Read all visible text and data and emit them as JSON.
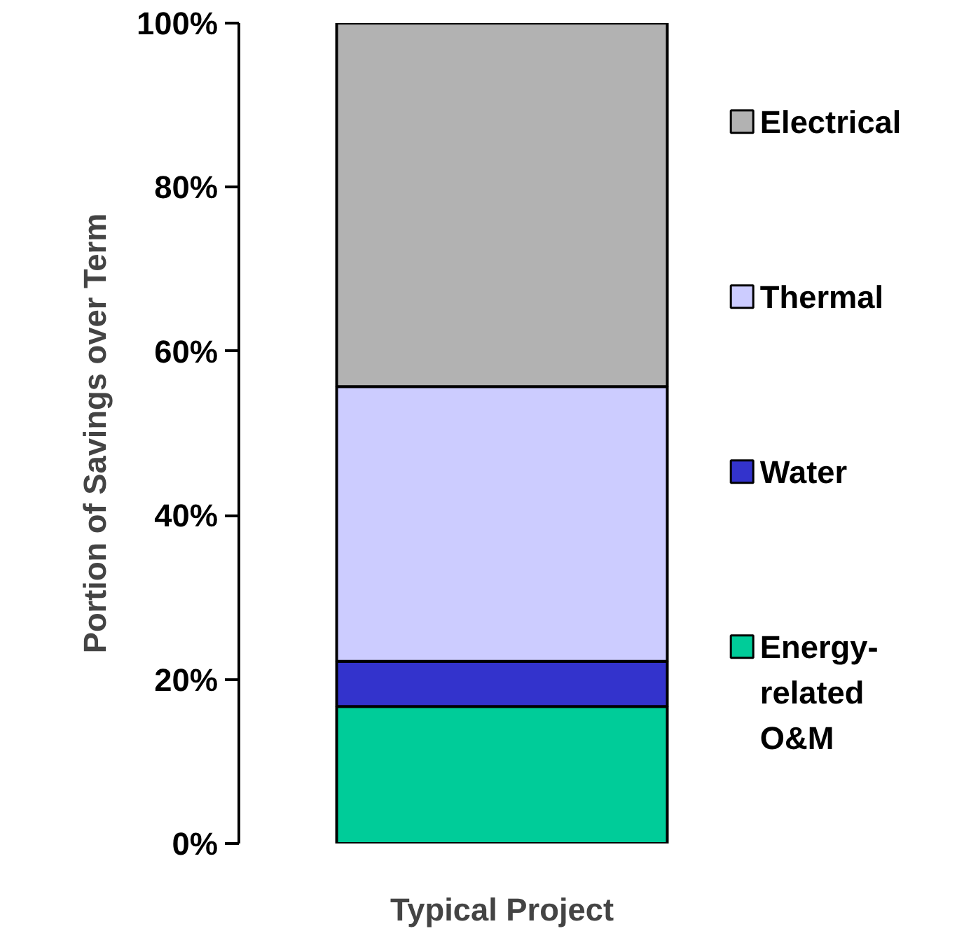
{
  "chart_data": {
    "type": "bar",
    "stacked": true,
    "ylabel": "Portion of Savings over Term",
    "categories": [
      "Typical Project"
    ],
    "series": [
      {
        "name": "Energy-\nrelated\nO&M",
        "color": "#00cc99",
        "values": [
          16.7
        ]
      },
      {
        "name": "Water",
        "color": "#3333cc",
        "values": [
          5.5
        ]
      },
      {
        "name": "Thermal",
        "color": "#ccccff",
        "values": [
          33.5
        ]
      },
      {
        "name": "Electrical",
        "color": "#b2b2b2",
        "values": [
          44.3
        ]
      }
    ],
    "ylim": [
      0,
      100
    ],
    "yticks": [
      {
        "value": 0,
        "label": "0%"
      },
      {
        "value": 20,
        "label": "20%"
      },
      {
        "value": 40,
        "label": "40%"
      },
      {
        "value": 60,
        "label": "60%"
      },
      {
        "value": 80,
        "label": "80%"
      },
      {
        "value": 100,
        "label": "100%"
      }
    ],
    "grid": false,
    "legend": "right"
  }
}
